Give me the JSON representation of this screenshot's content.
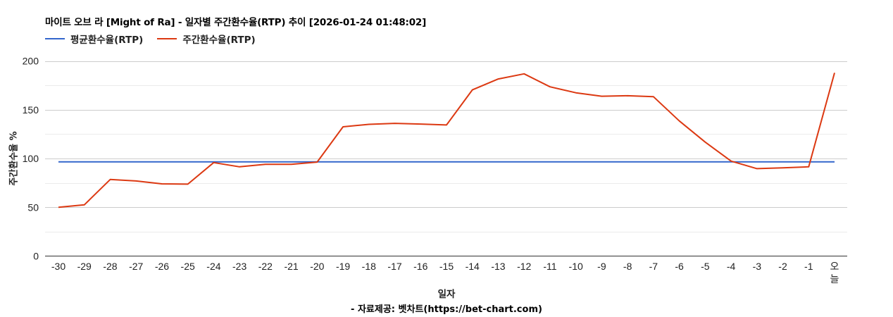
{
  "title": "마이트 오브 라 [Might of Ra] - 일자별 주간환수율(RTP) 추이 [2026-01-24 01:48:02]",
  "legend": [
    {
      "label": "평균환수율(RTP)",
      "color": "#3366cc"
    },
    {
      "label": "주간환수율(RTP)",
      "color": "#dc3912"
    }
  ],
  "ylabel": "주간환수율 %",
  "xlabel": "일자",
  "source": "- 자료제공: 벳차트(https://bet-chart.com)",
  "chart_data": {
    "type": "line",
    "title": "마이트 오브 라 [Might of Ra] - 일자별 주간환수율(RTP) 추이 [2026-01-24 01:48:02]",
    "xlabel": "일자",
    "ylabel": "주간환수율 %",
    "ylim": [
      0,
      200
    ],
    "yticks": [
      0,
      50,
      100,
      150,
      200
    ],
    "grid": true,
    "legend_position": "top",
    "categories": [
      "-30",
      "-29",
      "-28",
      "-27",
      "-26",
      "-25",
      "-24",
      "-23",
      "-22",
      "-21",
      "-20",
      "-19",
      "-18",
      "-17",
      "-16",
      "-15",
      "-14",
      "-13",
      "-12",
      "-11",
      "-10",
      "-9",
      "-8",
      "-7",
      "-6",
      "-5",
      "-4",
      "-3",
      "-2",
      "-1",
      "오늘"
    ],
    "series": [
      {
        "name": "평균환수율(RTP)",
        "color": "#3366cc",
        "values": [
          96.5,
          96.5,
          96.5,
          96.5,
          96.5,
          96.5,
          96.5,
          96.5,
          96.5,
          96.5,
          96.5,
          96.5,
          96.5,
          96.5,
          96.5,
          96.5,
          96.5,
          96.5,
          96.5,
          96.5,
          96.5,
          96.5,
          96.5,
          96.5,
          96.5,
          96.5,
          96.5,
          96.5,
          96.5,
          96.5,
          96.5
        ]
      },
      {
        "name": "주간환수율(RTP)",
        "color": "#dc3912",
        "values": [
          50.0,
          52.5,
          78.5,
          77.0,
          74.0,
          73.7,
          95.8,
          91.5,
          94.0,
          94.0,
          96.3,
          132.5,
          135.0,
          136.0,
          135.3,
          134.4,
          170.3,
          181.5,
          186.8,
          173.5,
          167.4,
          163.8,
          164.3,
          163.3,
          138.5,
          116.8,
          97.3,
          89.6,
          90.5,
          91.5,
          187.8
        ]
      }
    ]
  }
}
